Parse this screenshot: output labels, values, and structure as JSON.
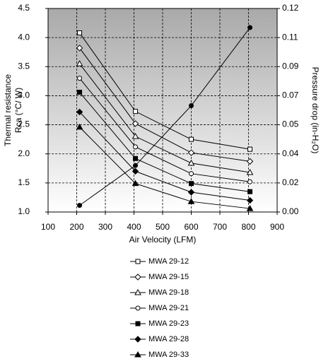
{
  "chart_data": {
    "type": "line",
    "x_label": "Air Velocity (LFM)",
    "y_label": [
      "Thermal resistance",
      "Rca (°C/ W)"
    ],
    "y2_label": "Pressure drop (in-H₂O)",
    "x": [
      210,
      405,
      600,
      805
    ],
    "xlim": [
      100,
      900
    ],
    "xticks": [
      100,
      200,
      300,
      400,
      500,
      600,
      700,
      800,
      900
    ],
    "ylim": [
      1.0,
      4.5
    ],
    "yticks": [
      {
        "value": 1,
        "label": "1.0"
      },
      1.5,
      {
        "value": 2,
        "label": "2.0"
      },
      2.5,
      {
        "value": 3,
        "label": "3.0"
      },
      3.5,
      {
        "value": 4,
        "label": "4.0"
      },
      4.5
    ],
    "y2lim": [
      0,
      0.1225
    ],
    "y2ticks": [
      {
        "value": 0,
        "label": "0.00"
      },
      {
        "value": 0.0175,
        "label": "0.02"
      },
      {
        "value": 0.035,
        "label": "0.04"
      },
      {
        "value": 0.0525,
        "label": "0.05"
      },
      {
        "value": 0.07,
        "label": "0.07"
      },
      {
        "value": 0.0875,
        "label": "0.09"
      },
      {
        "value": 0.105,
        "label": "0.11"
      },
      {
        "value": 0.1225,
        "label": "0.12"
      }
    ],
    "grid": true,
    "series": [
      {
        "name": "MWA 29-12",
        "color": "#000000",
        "marker": "square",
        "filled": false,
        "values": [
          4.08,
          2.73,
          2.25,
          2.08
        ]
      },
      {
        "name": "MWA 29-15",
        "color": "#000000",
        "marker": "diamond",
        "filled": false,
        "values": [
          3.82,
          2.52,
          2.02,
          1.87
        ]
      },
      {
        "name": "MWA 29-18",
        "color": "#000000",
        "marker": "triangle",
        "filled": false,
        "values": [
          3.55,
          2.3,
          1.84,
          1.68
        ]
      },
      {
        "name": "MWA 29-21",
        "color": "#000000",
        "marker": "circle",
        "filled": false,
        "values": [
          3.3,
          2.12,
          1.66,
          1.52
        ]
      },
      {
        "name": "MWA 29-23",
        "color": "#000000",
        "marker": "square",
        "filled": true,
        "values": [
          3.06,
          1.92,
          1.49,
          1.35
        ]
      },
      {
        "name": "MWA 29-28",
        "color": "#000000",
        "marker": "diamond",
        "filled": true,
        "values": [
          2.72,
          1.7,
          1.34,
          1.2
        ]
      },
      {
        "name": "MWA 29-33",
        "color": "#000000",
        "marker": "triangle",
        "filled": true,
        "values": [
          2.46,
          1.49,
          1.18,
          1.06
        ]
      },
      {
        "color": "#000000",
        "marker": "circle",
        "filled": true,
        "axis": "y2",
        "values": [
          0.004,
          0.028,
          0.064,
          0.111
        ]
      }
    ]
  }
}
